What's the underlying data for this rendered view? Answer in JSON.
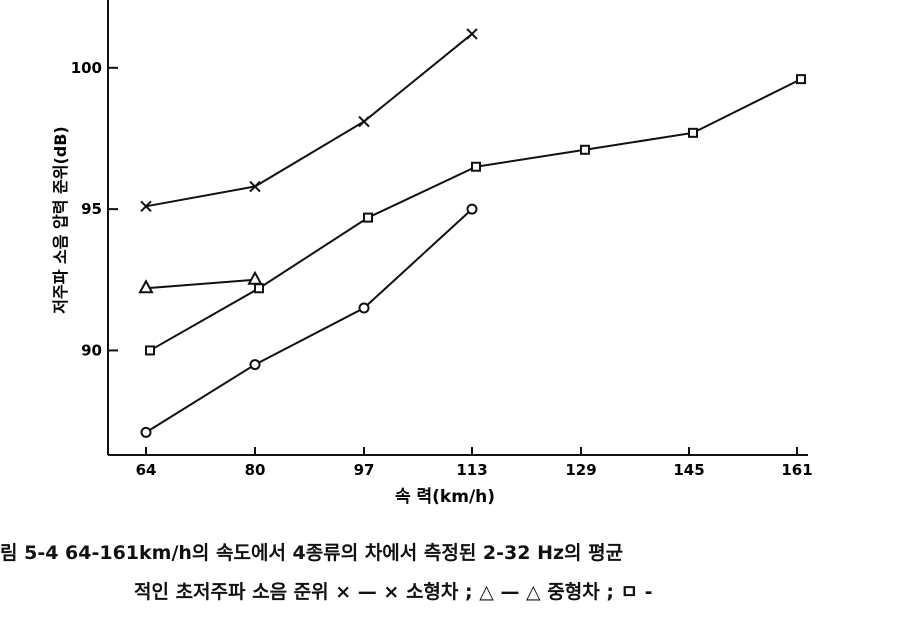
{
  "chart_data": {
    "type": "line",
    "xlabel": "속 력(km/h)",
    "ylabel": "저주파 소음 압력 준위(dB)",
    "x_ticks": [
      64,
      80,
      97,
      113,
      129,
      145,
      161
    ],
    "y_ticks": [
      90,
      95,
      100
    ],
    "ylim": [
      86.3,
      102.4
    ],
    "grid": false,
    "series": [
      {
        "marker": "x",
        "x": [
          64,
          80,
          97,
          113
        ],
        "values": [
          95.1,
          95.8,
          98.1,
          101.2
        ]
      },
      {
        "marker": "triangle",
        "x": [
          64,
          80
        ],
        "values": [
          92.2,
          92.5
        ]
      },
      {
        "marker": "square",
        "x": [
          64,
          80,
          97,
          113,
          129,
          145,
          161
        ],
        "values": [
          90.0,
          92.2,
          94.7,
          96.5,
          97.1,
          97.7,
          99.6
        ]
      },
      {
        "marker": "circle",
        "x": [
          64,
          80,
          97,
          113
        ],
        "values": [
          87.1,
          89.5,
          91.5,
          95.0
        ]
      }
    ]
  },
  "caption": {
    "line1": "림 5-4  64-161km/h의 속도에서 4종류의 차에서 측정된 2-32 Hz의 평균",
    "line2": "적인 초저주파 소음 준위 × — × 소형차 ; △ — △ 중형차 ; ㅁ -"
  }
}
